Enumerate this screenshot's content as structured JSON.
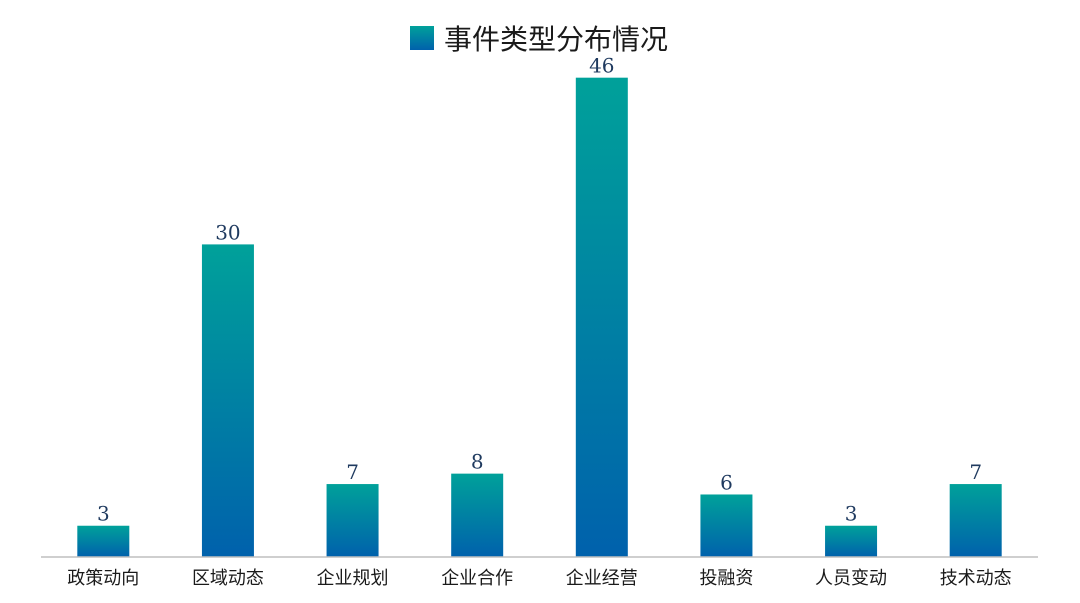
{
  "chart_data": {
    "type": "bar",
    "title": "",
    "xlabel": "",
    "ylabel": "",
    "legend": {
      "label": "事件类型分布情况",
      "position": "top-center"
    },
    "categories": [
      "政策动向",
      "区域动态",
      "企业规划",
      "企业合作",
      "企业经营",
      "投融资",
      "人员变动",
      "技术动态"
    ],
    "series": [
      {
        "name": "事件类型分布情况",
        "values": [
          3,
          30,
          7,
          8,
          46,
          6,
          3,
          7
        ]
      }
    ],
    "ylim": [
      0,
      50
    ],
    "grid": false,
    "data_labels": true
  },
  "colors": {
    "bar_top": "#00a19a",
    "bar_bottom": "#0061ac",
    "legend_swatch_top": "#00a19a",
    "legend_swatch_bottom": "#0061ac",
    "axis": "#bfbfbf",
    "value_label": "#1f3a5f"
  }
}
